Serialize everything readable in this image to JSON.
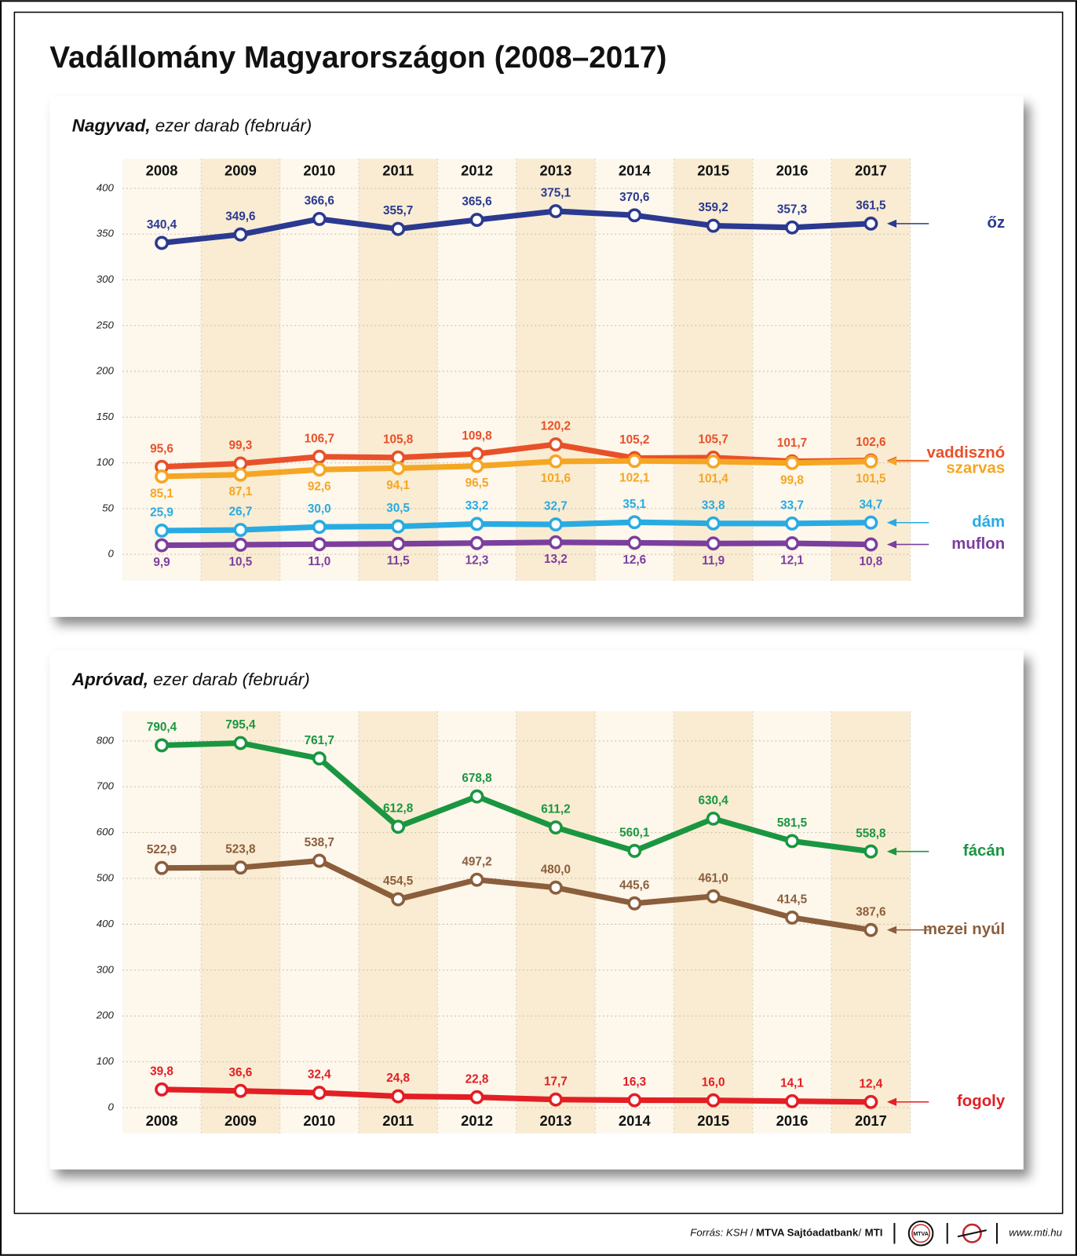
{
  "title": "Vadállomány Magyarországon (2008–2017)",
  "footer": {
    "source": "Forrás: KSH",
    "publisher": "MTVA Sajtóadatbank",
    "agency": "MTI",
    "logo": "MTVA",
    "url": "www.mti.hu"
  },
  "chart_data": [
    {
      "type": "line",
      "title": "Nagyvad,",
      "subtitle": "ezer darab (február)",
      "categories": [
        "2008",
        "2009",
        "2010",
        "2011",
        "2012",
        "2013",
        "2014",
        "2015",
        "2016",
        "2017"
      ],
      "ylim": [
        0,
        400
      ],
      "yticks": [
        0,
        50,
        100,
        150,
        200,
        250,
        300,
        350,
        400
      ],
      "grid": true,
      "series": [
        {
          "name": "őz",
          "color": "#2b3990",
          "label_side": "above",
          "values": [
            340.4,
            349.6,
            366.6,
            355.7,
            365.6,
            375.1,
            370.6,
            359.2,
            357.3,
            361.5
          ],
          "value_labels": [
            "340,4",
            "349,6",
            "366,6",
            "355,7",
            "365,6",
            "375,1",
            "370,6",
            "359,2",
            "357,3",
            "361,5"
          ]
        },
        {
          "name": "vaddisznó",
          "color": "#e8502a",
          "label_side": "above",
          "values": [
            95.6,
            99.3,
            106.7,
            105.8,
            109.8,
            120.2,
            105.2,
            105.7,
            101.7,
            102.6
          ],
          "value_labels": [
            "95,6",
            "99,3",
            "106,7",
            "105,8",
            "109,8",
            "120,2",
            "105,2",
            "105,7",
            "101,7",
            "102,6"
          ]
        },
        {
          "name": "szarvas",
          "color": "#f5a623",
          "label_side": "below",
          "values": [
            85.1,
            87.1,
            92.6,
            94.1,
            96.5,
            101.6,
            102.1,
            101.4,
            99.8,
            101.5
          ],
          "value_labels": [
            "85,1",
            "87,1",
            "92,6",
            "94,1",
            "96,5",
            "101,6",
            "102,1",
            "101,4",
            "99,8",
            "101,5"
          ]
        },
        {
          "name": "dám",
          "color": "#29abe2",
          "label_side": "above",
          "values": [
            25.9,
            26.7,
            30.0,
            30.5,
            33.2,
            32.7,
            35.1,
            33.8,
            33.7,
            34.7
          ],
          "value_labels": [
            "25,9",
            "26,7",
            "30,0",
            "30,5",
            "33,2",
            "32,7",
            "35,1",
            "33,8",
            "33,7",
            "34,7"
          ]
        },
        {
          "name": "muflon",
          "color": "#7b3f9e",
          "label_side": "below",
          "values": [
            9.9,
            10.5,
            11.0,
            11.5,
            12.3,
            13.2,
            12.6,
            11.9,
            12.1,
            10.8
          ],
          "value_labels": [
            "9,9",
            "10,5",
            "11,0",
            "11,5",
            "12,3",
            "13,2",
            "12,6",
            "11,9",
            "12,1",
            "10,8"
          ]
        }
      ]
    },
    {
      "type": "line",
      "title": "Apróvad,",
      "subtitle": "ezer darab (február)",
      "categories": [
        "2008",
        "2009",
        "2010",
        "2011",
        "2012",
        "2013",
        "2014",
        "2015",
        "2016",
        "2017"
      ],
      "ylim": [
        0,
        800
      ],
      "yticks": [
        0,
        100,
        200,
        300,
        400,
        500,
        600,
        700,
        800
      ],
      "grid": true,
      "series": [
        {
          "name": "fácán",
          "color": "#1a9641",
          "label_side": "above",
          "values": [
            790.4,
            795.4,
            761.7,
            612.8,
            678.8,
            611.2,
            560.1,
            630.4,
            581.5,
            558.8
          ],
          "value_labels": [
            "790,4",
            "795,4",
            "761,7",
            "612,8",
            "678,8",
            "611,2",
            "560,1",
            "630,4",
            "581,5",
            "558,8"
          ]
        },
        {
          "name": "mezei nyúl",
          "color": "#8b5e3c",
          "label_side": "above",
          "values": [
            522.9,
            523.8,
            538.7,
            454.5,
            497.2,
            480.0,
            445.6,
            461.0,
            414.5,
            387.6
          ],
          "value_labels": [
            "522,9",
            "523,8",
            "538,7",
            "454,5",
            "497,2",
            "480,0",
            "445,6",
            "461,0",
            "414,5",
            "387,6"
          ]
        },
        {
          "name": "fogoly",
          "color": "#e31e24",
          "label_side": "above",
          "values": [
            39.8,
            36.6,
            32.4,
            24.8,
            22.8,
            17.7,
            16.3,
            16.0,
            14.1,
            12.4
          ],
          "value_labels": [
            "39,8",
            "36,6",
            "32,4",
            "24,8",
            "22,8",
            "17,7",
            "16,3",
            "16,0",
            "14,1",
            "12,4"
          ]
        }
      ]
    }
  ]
}
